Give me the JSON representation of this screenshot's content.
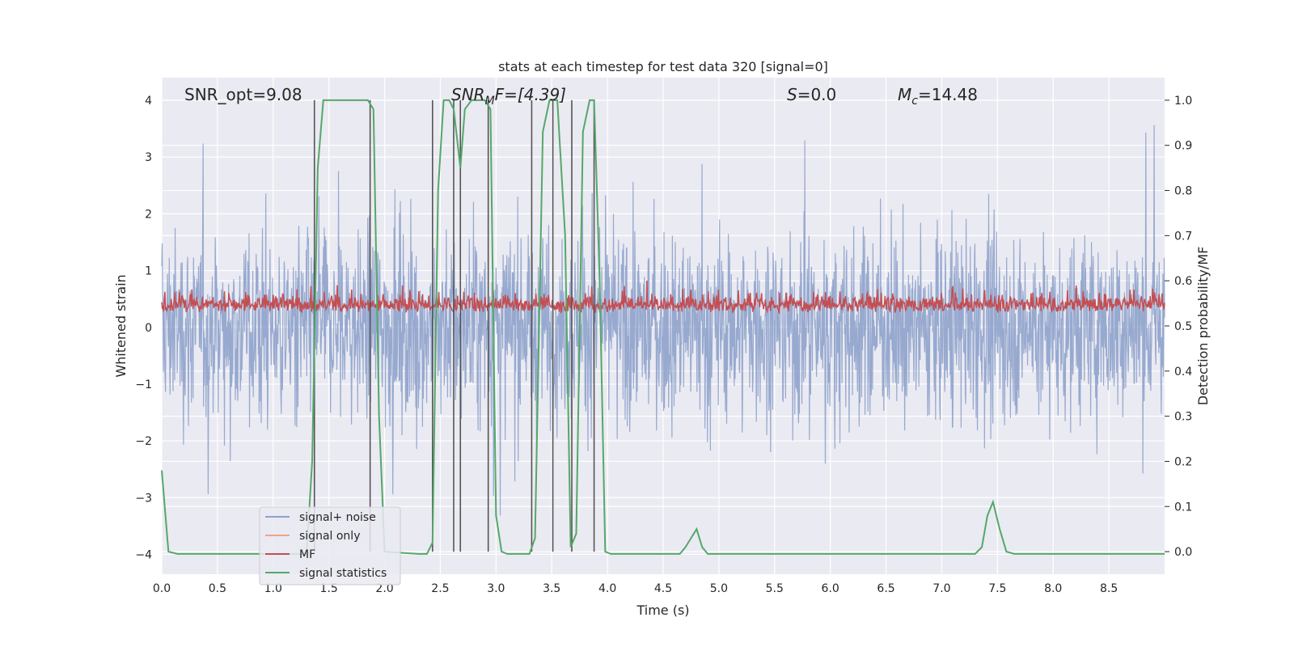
{
  "chart_data": {
    "type": "line",
    "title": "stats at each timestep for test data 320 [signal=0]",
    "xlabel": "Time (s)",
    "ylabel": "Whitened strain",
    "ylabel_right": "Detection probability/MF",
    "xlim": [
      0.0,
      9.0
    ],
    "ylim": [
      -4.35,
      4.4
    ],
    "ylim_right": [
      -0.05,
      1.05
    ],
    "xticks": [
      "0.0",
      "0.5",
      "1.0",
      "1.5",
      "2.0",
      "2.5",
      "3.0",
      "3.5",
      "4.0",
      "4.5",
      "5.0",
      "5.5",
      "6.0",
      "6.5",
      "7.0",
      "7.5",
      "8.0",
      "8.5"
    ],
    "yticks": [
      "−4",
      "−3",
      "−2",
      "−1",
      "0",
      "1",
      "2",
      "3",
      "4"
    ],
    "yticks_right": [
      "0.0",
      "0.1",
      "0.2",
      "0.3",
      "0.4",
      "0.5",
      "0.6",
      "0.7",
      "0.8",
      "0.9",
      "1.0"
    ],
    "grid": true,
    "legend_placement": "lower-left",
    "annotations": {
      "snr_opt": "SNR_opt=9.08",
      "snr_mf_sym": "SNR",
      "snr_mf_sub": "M",
      "snr_mf_tail": "F=[4.39]",
      "s_sym": "S",
      "s_tail": "=0.0",
      "mc_sym": "M",
      "mc_sub": "c",
      "mc_tail": "=14.48"
    },
    "series": [
      {
        "name": "signal+ noise",
        "color": "#8ea2cb",
        "description": "whitened noise, amplitude envelope ~[-3.5, 4]"
      },
      {
        "name": "signal only",
        "color": "#eda58a",
        "values": []
      },
      {
        "name": "MF",
        "color": "#c44e52",
        "description": "matched filter output, ~0.05 to 0.95 on left axis"
      },
      {
        "name": "signal statistics",
        "color": "#55a868",
        "x": [
          0.0,
          0.06,
          0.14,
          0.3,
          0.6,
          1.0,
          1.3,
          1.35,
          1.4,
          1.45,
          1.5,
          1.55,
          1.85,
          1.9,
          1.95,
          2.0,
          2.3,
          2.38,
          2.43,
          2.48,
          2.53,
          2.58,
          2.62,
          2.68,
          2.72,
          2.78,
          2.85,
          2.9,
          2.95,
          3.0,
          3.05,
          3.1,
          3.3,
          3.35,
          3.42,
          3.48,
          3.55,
          3.62,
          3.67,
          3.72,
          3.78,
          3.84,
          3.88,
          3.93,
          3.98,
          4.03,
          4.5,
          4.65,
          4.7,
          4.75,
          4.8,
          4.85,
          4.9,
          5.0,
          5.5,
          6.0,
          6.05,
          6.5,
          7.0,
          7.3,
          7.36,
          7.41,
          7.46,
          7.52,
          7.58,
          7.65,
          8.0,
          8.5,
          9.0
        ],
        "values": [
          0.18,
          0.0,
          -0.005,
          -0.005,
          -0.005,
          -0.005,
          -0.005,
          0.2,
          0.85,
          1.0,
          1.0,
          1.0,
          1.0,
          0.98,
          0.3,
          0.0,
          -0.005,
          -0.005,
          0.02,
          0.8,
          1.0,
          1.0,
          0.98,
          0.85,
          0.98,
          1.0,
          1.0,
          1.0,
          0.98,
          0.08,
          0.0,
          -0.005,
          -0.005,
          0.03,
          0.93,
          1.0,
          1.0,
          0.7,
          0.01,
          0.04,
          0.93,
          1.0,
          1.0,
          0.6,
          0.0,
          -0.005,
          -0.005,
          -0.005,
          0.01,
          0.03,
          0.05,
          0.01,
          -0.005,
          -0.005,
          -0.005,
          -0.005,
          -0.005,
          -0.005,
          -0.005,
          -0.005,
          0.01,
          0.08,
          0.11,
          0.05,
          0.0,
          -0.005,
          -0.005,
          -0.005,
          -0.005
        ]
      }
    ],
    "vlines": [
      1.37,
      1.87,
      2.43,
      2.62,
      2.68,
      2.93,
      3.32,
      3.51,
      3.68,
      3.88
    ]
  }
}
